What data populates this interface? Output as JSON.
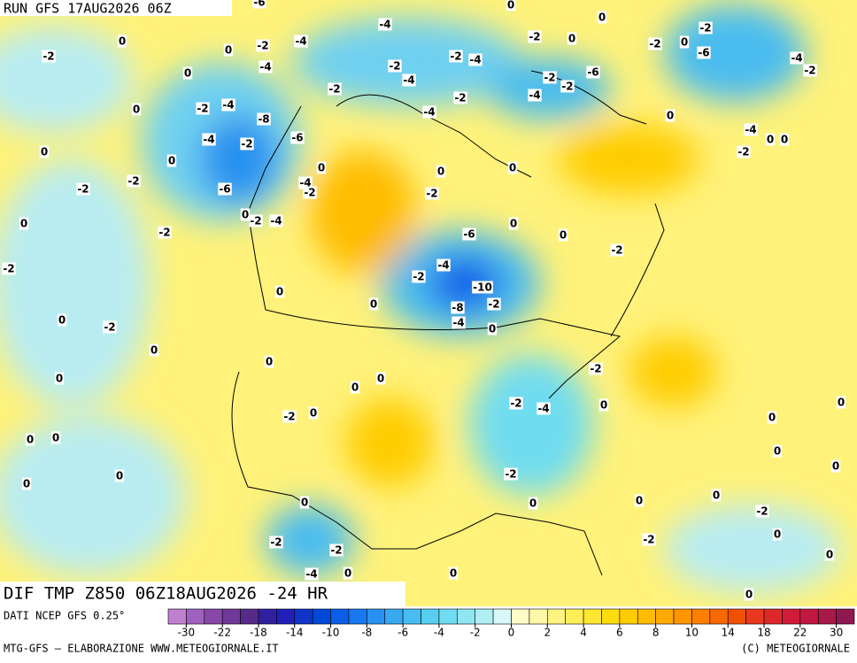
{
  "header": {
    "run": "RUN GFS 17AUG2026 06Z",
    "product": "DIF TMP Z850 06Z18AUG2026 -24 HR"
  },
  "map": {
    "labels": [
      -6,
      -4,
      0,
      -2,
      0,
      -2,
      -4,
      -4,
      0,
      -2,
      -2,
      -4,
      -2,
      -4,
      -2,
      -2,
      -2,
      -6,
      -4,
      -2,
      -4,
      -2,
      0,
      -8,
      -4,
      -2,
      -6,
      -4,
      -2,
      -4,
      -2,
      -2,
      -6,
      0,
      -4,
      0,
      0,
      -2,
      0,
      0,
      -2,
      -2,
      -6,
      -4,
      -2,
      0,
      0,
      0,
      -2,
      0,
      -2,
      -4,
      0,
      -2,
      -6,
      0,
      0,
      -2,
      -4,
      -2,
      -10,
      -8,
      -2,
      -4,
      0,
      0,
      0,
      -2,
      0,
      -2,
      0,
      0,
      0,
      0,
      0,
      -2,
      -2,
      -4,
      0,
      -2,
      0,
      0,
      0,
      0,
      0,
      0,
      -2,
      0,
      0,
      0,
      0,
      0,
      0,
      0,
      -2,
      -2,
      -2,
      -2,
      0,
      -4,
      0,
      0,
      0,
      0,
      0,
      0,
      0,
      0
    ]
  },
  "footer": {
    "source": "DATI NCEP GFS 0.25°",
    "credit": "MTG-GFS — ELABORAZIONE WWW.METEOGIORNALE.IT",
    "copyright": "(C) METEOGIORNALE"
  },
  "colorbar": {
    "ticks": [
      -30,
      -22,
      -18,
      -14,
      -10,
      -8,
      -6,
      -4,
      -2,
      0,
      2,
      4,
      6,
      8,
      10,
      14,
      18,
      22,
      30
    ],
    "colors": [
      "#c080d0",
      "#a060c0",
      "#8848a8",
      "#703898",
      "#582a88",
      "#3020a0",
      "#2020b8",
      "#1034c8",
      "#0048d8",
      "#0a5ee8",
      "#1878f0",
      "#2890f0",
      "#38a8f0",
      "#48bcf0",
      "#58cef0",
      "#70dcf0",
      "#90e6f0",
      "#b0eef2",
      "#d8f8f8",
      "#fffcc8",
      "#fff8a8",
      "#fff480",
      "#ffee58",
      "#ffe630",
      "#ffdc10",
      "#ffcc00",
      "#ffbc00",
      "#ffaa00",
      "#ff9600",
      "#ff8000",
      "#f86800",
      "#f05000",
      "#e83820",
      "#dc2828",
      "#d01c38",
      "#c01840",
      "#a81848",
      "#901850"
    ]
  }
}
